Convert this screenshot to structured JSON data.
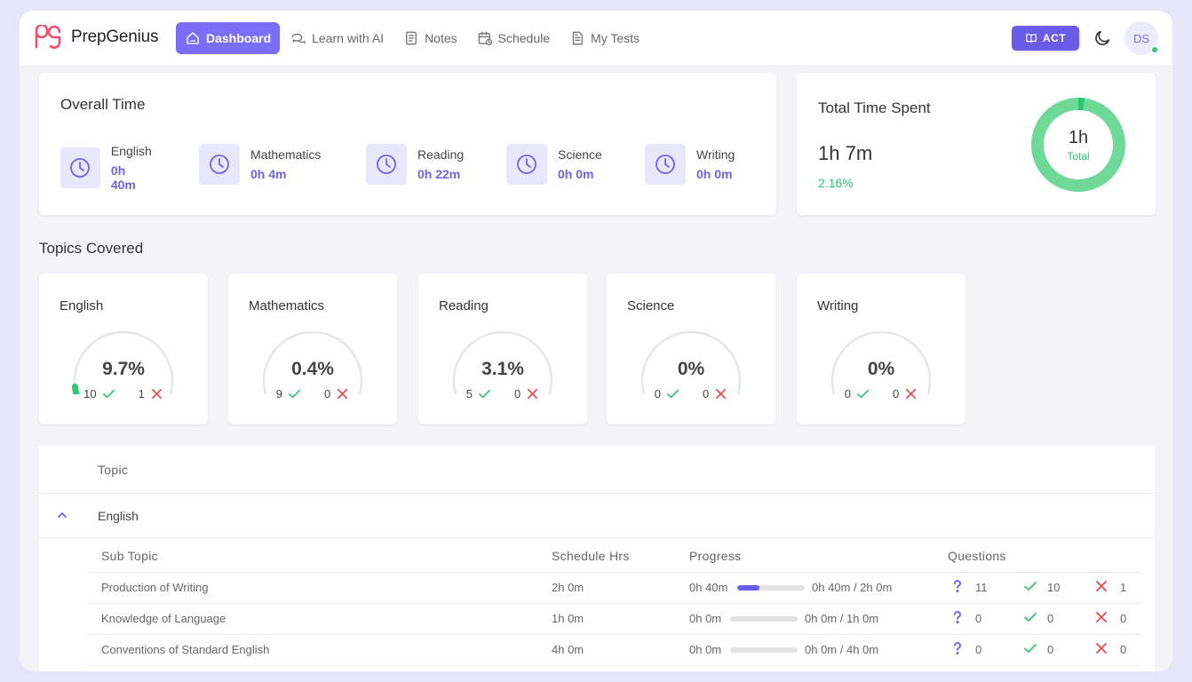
{
  "brand": {
    "name": "PrepGenius"
  },
  "nav": {
    "items": [
      {
        "label": "Dashboard",
        "icon": "home-icon",
        "active": true
      },
      {
        "label": "Learn with AI",
        "icon": "chat-icon",
        "active": false
      },
      {
        "label": "Notes",
        "icon": "notes-icon",
        "active": false
      },
      {
        "label": "Schedule",
        "icon": "calendar-icon",
        "active": false
      },
      {
        "label": "My Tests",
        "icon": "document-icon",
        "active": false
      }
    ],
    "exam_button": "ACT",
    "avatar_initials": "DS"
  },
  "overall_time": {
    "title": "Overall Time",
    "subjects": [
      {
        "name": "English",
        "time": "0h 40m"
      },
      {
        "name": "Mathematics",
        "time": "0h 4m"
      },
      {
        "name": "Reading",
        "time": "0h 22m"
      },
      {
        "name": "Science",
        "time": "0h 0m"
      },
      {
        "name": "Writing",
        "time": "0h 0m"
      }
    ]
  },
  "total_time": {
    "title": "Total Time Spent",
    "value": "1h 7m",
    "percent": "2.16%",
    "donut_main": "1h",
    "donut_sub": "Total",
    "donut_fraction": 0.0216
  },
  "topics_covered": {
    "title": "Topics Covered",
    "cards": [
      {
        "name": "English",
        "percent": "9.7%",
        "fraction": 0.097,
        "correct": "10",
        "wrong": "1"
      },
      {
        "name": "Mathematics",
        "percent": "0.4%",
        "fraction": 0.004,
        "correct": "9",
        "wrong": "0"
      },
      {
        "name": "Reading",
        "percent": "3.1%",
        "fraction": 0.031,
        "correct": "5",
        "wrong": "0"
      },
      {
        "name": "Science",
        "percent": "0%",
        "fraction": 0,
        "correct": "0",
        "wrong": "0"
      },
      {
        "name": "Writing",
        "percent": "0%",
        "fraction": 0,
        "correct": "0",
        "wrong": "0"
      }
    ]
  },
  "table": {
    "header_topic": "Topic",
    "topic_row": "English",
    "sub_headers": {
      "sub_topic": "Sub Topic",
      "schedule": "Schedule Hrs",
      "progress": "Progress",
      "questions": "Questions"
    },
    "rows": [
      {
        "name": "Production of Writing",
        "schedule": "2h 0m",
        "spent": "0h 40m",
        "progress_text": "0h 40m / 2h 0m",
        "fraction": 0.333,
        "questions": "11",
        "correct": "10",
        "wrong": "1"
      },
      {
        "name": "Knowledge of Language",
        "schedule": "1h 0m",
        "spent": "0h 0m",
        "progress_text": "0h 0m / 1h 0m",
        "fraction": 0,
        "questions": "0",
        "correct": "0",
        "wrong": "0"
      },
      {
        "name": "Conventions of Standard English",
        "schedule": "4h 0m",
        "spent": "0h 0m",
        "progress_text": "0h 0m / 4h 0m",
        "fraction": 0,
        "questions": "0",
        "correct": "0",
        "wrong": "0"
      }
    ]
  },
  "colors": {
    "accent": "#7b6ef6",
    "success": "#2ec66f",
    "danger": "#e5484d"
  }
}
